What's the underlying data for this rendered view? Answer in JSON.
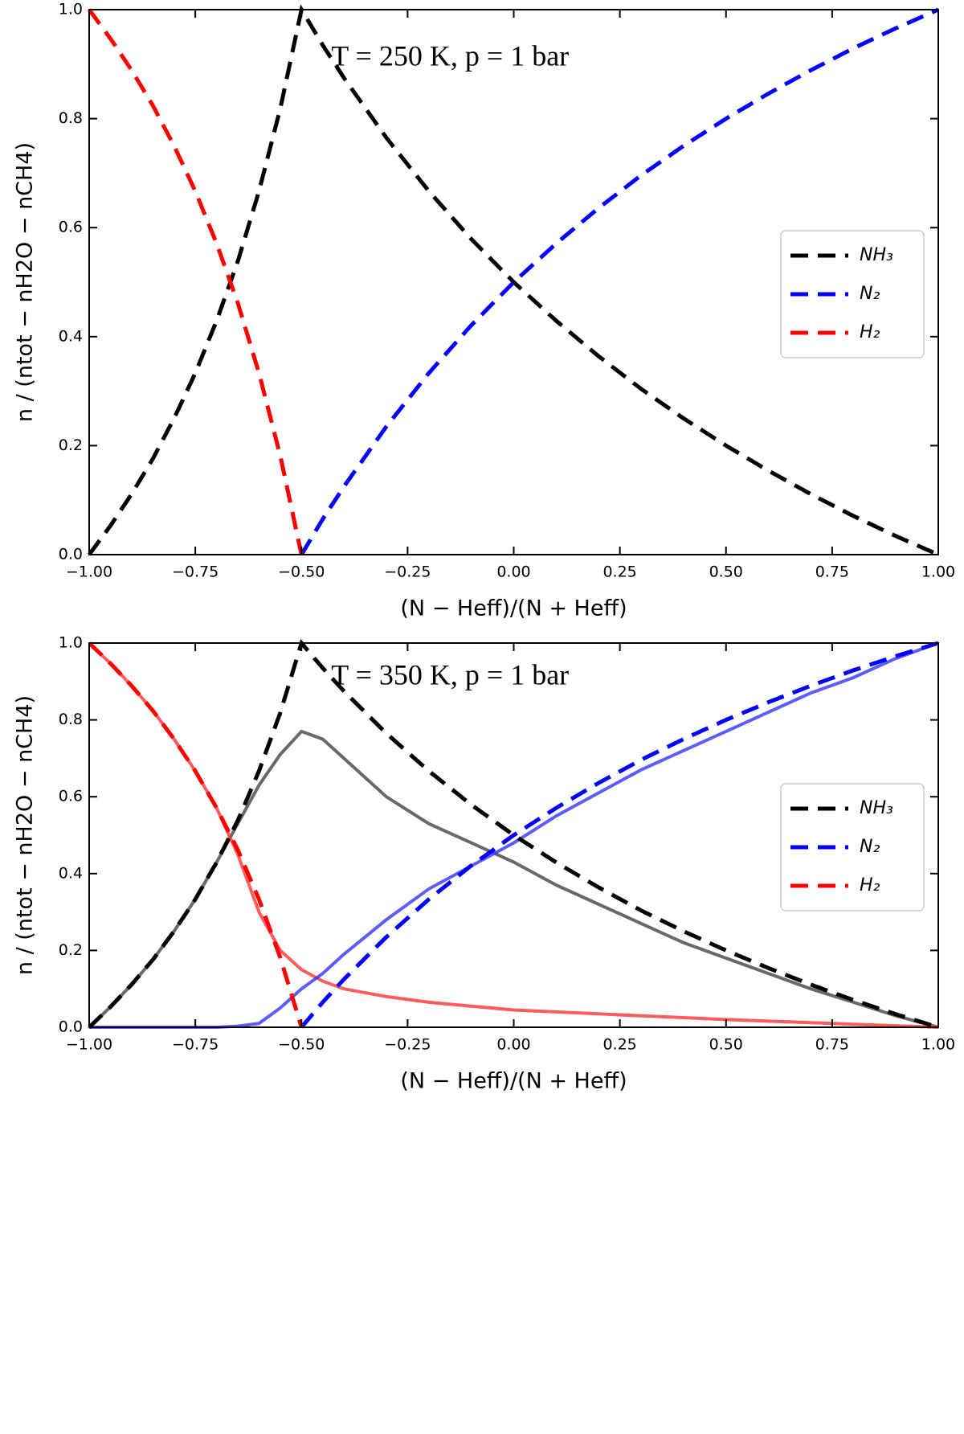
{
  "chart_data": [
    {
      "type": "line",
      "annotation": "T = 250 K, p = 1 bar",
      "xlabel": "(N − Heff)/(N + Heff)",
      "ylabel": "n / (ntot − nH2O − nCH4)",
      "x": [
        -1,
        -0.95,
        -0.9,
        -0.85,
        -0.8,
        -0.75,
        -0.7,
        -0.65,
        -0.6,
        -0.55,
        -0.5,
        -0.45,
        -0.4,
        -0.3,
        -0.2,
        -0.1,
        0,
        0.1,
        0.2,
        0.3,
        0.4,
        0.5,
        0.6,
        0.7,
        0.8,
        0.9,
        1
      ],
      "series": [
        {
          "name": "NH₃",
          "color": "#000000",
          "style": "dashed",
          "values": [
            0,
            0.053,
            0.111,
            0.176,
            0.25,
            0.333,
            0.429,
            0.538,
            0.667,
            0.818,
            1,
            0.935,
            0.875,
            0.765,
            0.667,
            0.579,
            0.5,
            0.429,
            0.364,
            0.304,
            0.25,
            0.2,
            0.154,
            0.111,
            0.071,
            0.034,
            0
          ]
        },
        {
          "name": "N₂",
          "color": "#0000ff",
          "style": "dashed",
          "values": [
            null,
            null,
            null,
            null,
            null,
            null,
            null,
            null,
            null,
            null,
            0,
            0.065,
            0.125,
            0.235,
            0.333,
            0.421,
            0.5,
            0.571,
            0.636,
            0.696,
            0.75,
            0.8,
            0.846,
            0.889,
            0.929,
            0.966,
            1
          ]
        },
        {
          "name": "H₂",
          "color": "#ff0000",
          "style": "dashed",
          "values": [
            1,
            0.947,
            0.889,
            0.824,
            0.75,
            0.667,
            0.571,
            0.462,
            0.333,
            0.182,
            0,
            null,
            null,
            null,
            null,
            null,
            null,
            null,
            null,
            null,
            null,
            null,
            null,
            null,
            null,
            null,
            null
          ]
        }
      ],
      "xlim": [
        -1,
        1
      ],
      "xticks": [
        {
          "value": -1,
          "label": "−1.00"
        },
        {
          "value": -0.75,
          "label": "−0.75"
        },
        {
          "value": -0.5,
          "label": "−0.50"
        },
        {
          "value": -0.25,
          "label": "−0.25"
        },
        {
          "value": 0,
          "label": "0.00"
        },
        {
          "value": 0.25,
          "label": "0.25"
        },
        {
          "value": 0.5,
          "label": "0.50"
        },
        {
          "value": 0.75,
          "label": "0.75"
        },
        {
          "value": 1,
          "label": "1.00"
        }
      ],
      "ylim": [
        0,
        1
      ],
      "yticks": [
        {
          "value": 0,
          "label": "0.0"
        },
        0.2,
        0.4,
        0.6,
        0.8,
        {
          "value": 1,
          "label": "1.0"
        }
      ],
      "legend": "center right"
    },
    {
      "type": "line",
      "annotation": "T = 350 K, p = 1 bar",
      "xlabel": "(N − Heff)/(N + Heff)",
      "ylabel": "n / (ntot − nH2O − nCH4)",
      "x": [
        -1,
        -0.95,
        -0.9,
        -0.85,
        -0.8,
        -0.75,
        -0.7,
        -0.65,
        -0.6,
        -0.55,
        -0.5,
        -0.45,
        -0.4,
        -0.3,
        -0.2,
        -0.1,
        0,
        0.1,
        0.2,
        0.3,
        0.4,
        0.5,
        0.6,
        0.7,
        0.8,
        0.9,
        1
      ],
      "series": [
        {
          "color": "#444444",
          "style": "solid",
          "values": [
            0,
            0.053,
            0.111,
            0.176,
            0.25,
            0.333,
            0.429,
            0.53,
            0.63,
            0.71,
            0.77,
            0.75,
            0.7,
            0.6,
            0.53,
            0.48,
            0.43,
            0.37,
            0.32,
            0.27,
            0.22,
            0.18,
            0.14,
            0.1,
            0.065,
            0.03,
            0
          ]
        },
        {
          "color": "#ff3333",
          "style": "solid",
          "values": [
            1,
            0.947,
            0.889,
            0.824,
            0.75,
            0.667,
            0.571,
            0.45,
            0.3,
            0.2,
            0.15,
            0.12,
            0.1,
            0.08,
            0.065,
            0.055,
            0.045,
            0.04,
            0.035,
            0.03,
            0.025,
            0.02,
            0.016,
            0.012,
            0.008,
            0.004,
            0
          ]
        },
        {
          "color": "#3333ff",
          "style": "solid",
          "values": [
            0,
            0,
            0,
            0,
            0,
            0,
            0,
            0.003,
            0.01,
            0.05,
            0.1,
            0.14,
            0.19,
            0.28,
            0.36,
            0.42,
            0.48,
            0.55,
            0.61,
            0.67,
            0.72,
            0.77,
            0.82,
            0.87,
            0.91,
            0.96,
            1
          ]
        },
        {
          "name": "NH₃",
          "color": "#000000",
          "style": "dashed",
          "values": [
            0,
            0.053,
            0.111,
            0.176,
            0.25,
            0.333,
            0.429,
            0.538,
            0.667,
            0.818,
            1,
            0.935,
            0.875,
            0.765,
            0.667,
            0.579,
            0.5,
            0.429,
            0.364,
            0.304,
            0.25,
            0.2,
            0.154,
            0.111,
            0.071,
            0.034,
            0
          ]
        },
        {
          "name": "N₂",
          "color": "#0000ff",
          "style": "dashed",
          "values": [
            null,
            null,
            null,
            null,
            null,
            null,
            null,
            null,
            null,
            null,
            0,
            0.065,
            0.125,
            0.235,
            0.333,
            0.421,
            0.5,
            0.571,
            0.636,
            0.696,
            0.75,
            0.8,
            0.846,
            0.889,
            0.929,
            0.966,
            1
          ]
        },
        {
          "name": "H₂",
          "color": "#ff0000",
          "style": "dashed",
          "values": [
            1,
            0.947,
            0.889,
            0.824,
            0.75,
            0.667,
            0.571,
            0.462,
            0.333,
            0.182,
            0,
            null,
            null,
            null,
            null,
            null,
            null,
            null,
            null,
            null,
            null,
            null,
            null,
            null,
            null,
            null,
            null
          ]
        }
      ],
      "xlim": [
        -1,
        1
      ],
      "xticks": [
        {
          "value": -1,
          "label": "−1.00"
        },
        {
          "value": -0.75,
          "label": "−0.75"
        },
        {
          "value": -0.5,
          "label": "−0.50"
        },
        {
          "value": -0.25,
          "label": "−0.25"
        },
        {
          "value": 0,
          "label": "0.00"
        },
        {
          "value": 0.25,
          "label": "0.25"
        },
        {
          "value": 0.5,
          "label": "0.50"
        },
        {
          "value": 0.75,
          "label": "0.75"
        },
        {
          "value": 1,
          "label": "1.00"
        }
      ],
      "ylim": [
        0,
        1
      ],
      "yticks": [
        {
          "value": 0,
          "label": "0.0"
        },
        0.2,
        0.4,
        0.6,
        0.8,
        {
          "value": 1,
          "label": "1.0"
        }
      ],
      "legend": "center right"
    }
  ]
}
